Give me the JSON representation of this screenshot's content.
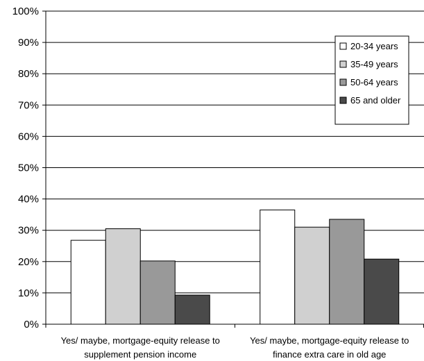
{
  "chart_data": {
    "type": "bar",
    "title": "",
    "xlabel": "",
    "ylabel": "",
    "ylim": [
      0,
      100
    ],
    "yticks": [
      "0%",
      "10%",
      "20%",
      "30%",
      "40%",
      "50%",
      "60%",
      "70%",
      "80%",
      "90%",
      "100%"
    ],
    "grid": true,
    "legend_position": "top-right",
    "categories": [
      [
        "Yes/ maybe, mortgage-equity release to",
        "supplement pension income"
      ],
      [
        "Yes/ maybe, mortgage-equity release to",
        "finance extra care in old age"
      ]
    ],
    "series": [
      {
        "name": "20-34 years",
        "color": "#ffffff",
        "values": [
          26.8,
          36.5
        ]
      },
      {
        "name": "35-49 years",
        "color": "#d0d0d0",
        "values": [
          30.5,
          31.0
        ]
      },
      {
        "name": "50-64 years",
        "color": "#999999",
        "values": [
          20.2,
          33.5
        ]
      },
      {
        "name": "65 and older",
        "color": "#4a4a4a",
        "values": [
          9.3,
          20.8
        ]
      }
    ]
  }
}
